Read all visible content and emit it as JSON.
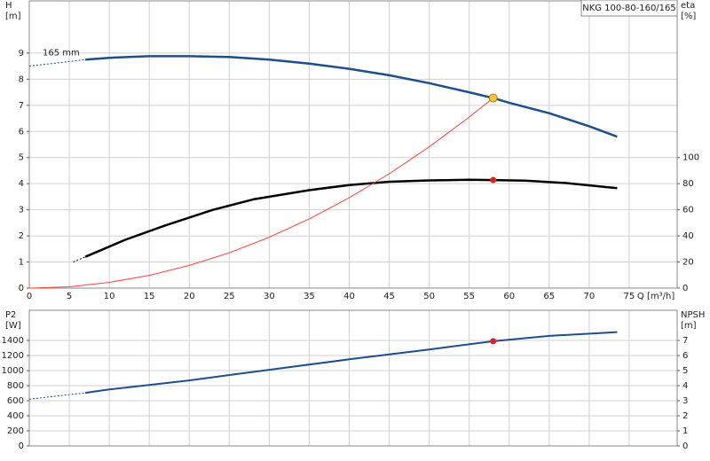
{
  "chart_data": [
    {
      "type": "line",
      "label": "NKG 100-80-160/165",
      "curve_label": "165 mm",
      "ylabel": "H",
      "yunit": "[m]",
      "y2label": "eta",
      "y2unit": "[%]",
      "xlabel": "Q [m³/h]",
      "xlim": [
        0,
        81
      ],
      "xticks": [
        0,
        5,
        10,
        15,
        20,
        25,
        30,
        35,
        40,
        45,
        50,
        55,
        60,
        65,
        70,
        75
      ],
      "ylim": [
        0,
        11
      ],
      "yticks": [
        0,
        1,
        2,
        3,
        4,
        5,
        6,
        7,
        8,
        9
      ],
      "y2lim": [
        0,
        220
      ],
      "y2ticks": [
        0,
        20,
        40,
        60,
        80,
        100
      ],
      "grid": true,
      "series": [
        {
          "color": "#1f4e8c",
          "style": "dotted",
          "width": 1,
          "x": [
            0,
            7
          ],
          "values": [
            8.5,
            8.75
          ]
        },
        {
          "color": "#1f4e8c",
          "width": 2.5,
          "x": [
            7,
            10,
            15,
            20,
            25,
            30,
            35,
            40,
            45,
            50,
            55,
            58,
            60,
            65,
            70,
            73.5
          ],
          "values": [
            8.75,
            8.82,
            8.88,
            8.88,
            8.85,
            8.75,
            8.6,
            8.4,
            8.15,
            7.85,
            7.5,
            7.28,
            7.1,
            6.7,
            6.2,
            5.8
          ]
        },
        {
          "color": "#000000",
          "style": "dotted",
          "width": 1,
          "axis": "y2",
          "x": [
            5.5,
            7
          ],
          "values": [
            20,
            24
          ]
        },
        {
          "color": "#000000",
          "width": 2.5,
          "axis": "y2",
          "x": [
            7,
            12,
            17,
            23,
            28,
            35,
            40,
            45,
            50,
            55,
            58,
            62,
            67,
            73.5
          ],
          "values": [
            24,
            37,
            48,
            60,
            68,
            75,
            79,
            81.5,
            82.5,
            83,
            82.8,
            82.3,
            80.5,
            76.5
          ]
        },
        {
          "color": "#ff4040",
          "width": 1,
          "x": [
            0,
            5,
            10,
            15,
            20,
            25,
            30,
            35,
            40,
            45,
            50,
            55,
            58
          ],
          "values": [
            0,
            0.05,
            0.22,
            0.49,
            0.87,
            1.35,
            1.95,
            2.65,
            3.46,
            4.38,
            5.41,
            6.55,
            7.28
          ]
        }
      ],
      "points": [
        {
          "x": 58,
          "y": 7.28,
          "color": "#f7c531"
        },
        {
          "x": 58,
          "y": 82.8,
          "axis": "y2",
          "color": "#e02020"
        }
      ]
    },
    {
      "type": "line",
      "ylabel": "P2",
      "yunit": "[W]",
      "y2label": "NPSH",
      "y2unit": "[m]",
      "xlim": [
        0,
        81
      ],
      "ylim": [
        0,
        1800
      ],
      "yticks": [
        0,
        200,
        400,
        600,
        800,
        1000,
        1200,
        1400
      ],
      "y2lim": [
        0,
        9
      ],
      "y2ticks": [
        0,
        1,
        2,
        3,
        4,
        5,
        6,
        7
      ],
      "grid": true,
      "series": [
        {
          "color": "#1f4e8c",
          "style": "dotted",
          "width": 1,
          "x": [
            0,
            7
          ],
          "values": [
            620,
            705
          ]
        },
        {
          "color": "#1f4e8c",
          "width": 2,
          "x": [
            7,
            10,
            20,
            30,
            40,
            50,
            58,
            65,
            73.5
          ],
          "values": [
            705,
            750,
            870,
            1010,
            1150,
            1280,
            1390,
            1460,
            1510
          ]
        }
      ],
      "points": [
        {
          "x": 58,
          "y": 1390,
          "color": "#e02020"
        }
      ]
    }
  ]
}
